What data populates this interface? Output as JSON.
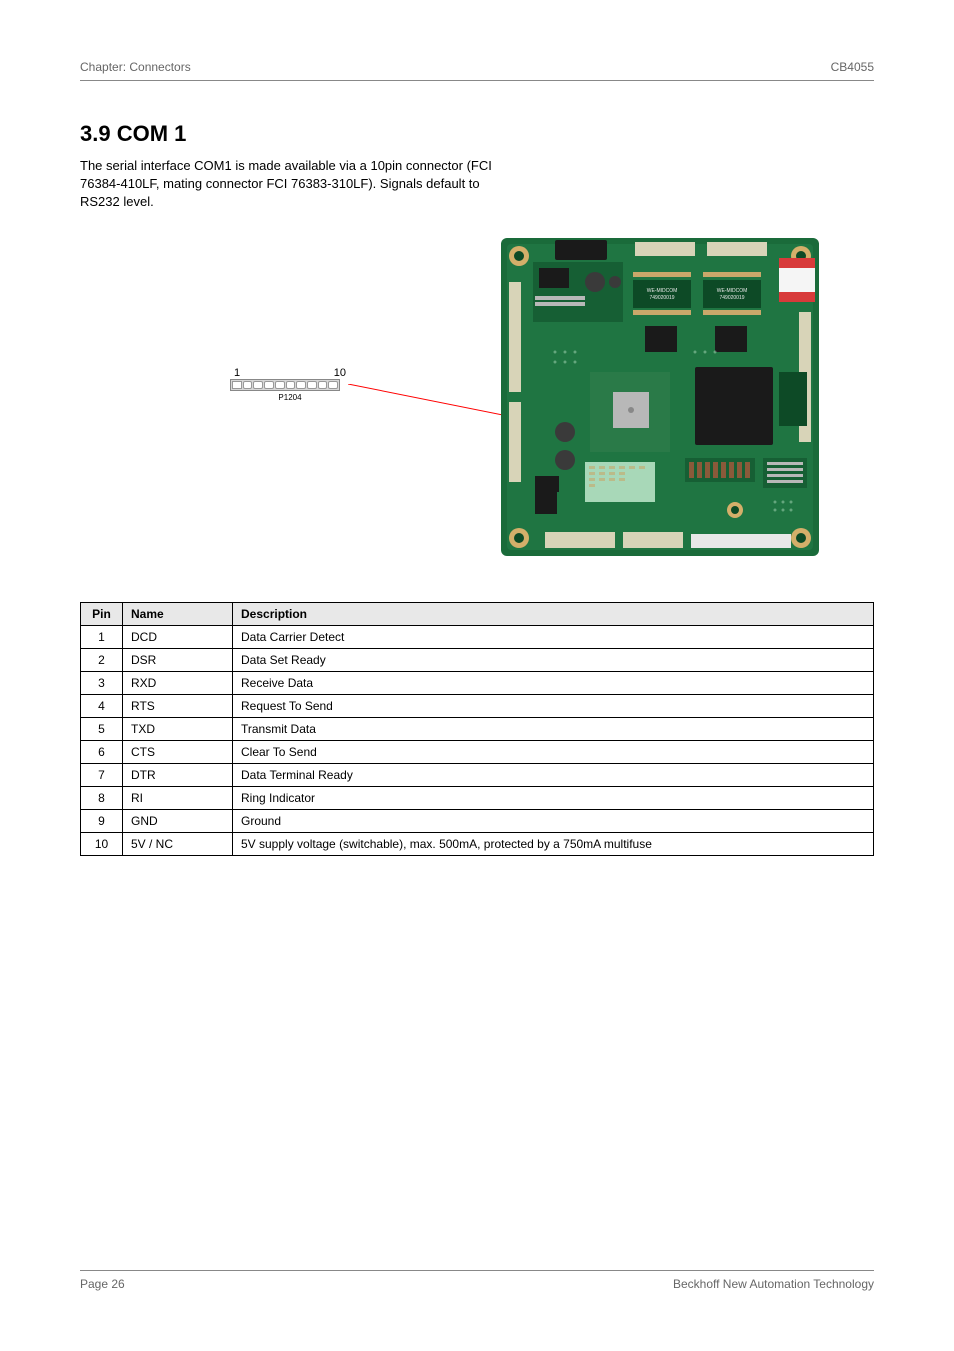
{
  "header": {
    "left": "Chapter: Connectors",
    "right": "CB4055"
  },
  "section": {
    "title": "3.9 COM 1",
    "description": "The serial interface COM1 is made available via a 10pin connector (FCI 76384-410LF, mating connector FCI 76383-310LF). Signals default to RS232 level."
  },
  "diagram": {
    "pin_start": "1",
    "pin_end": "10",
    "ref": "P1204",
    "pin_count": 10,
    "colors": {
      "strip_bg": "#d8d8d8",
      "strip_border": "#888888",
      "pin_bg": "#ffffff",
      "pin_border": "#999999",
      "leader": "#ff0000"
    }
  },
  "board": {
    "colors": {
      "pcb": "#1a6b3a",
      "pcb_dark": "#0d4a26",
      "silk": "#e8e8e8",
      "copper": "#c9a86a",
      "hole": "#d4af6a",
      "chip_black": "#1a1a1a",
      "chip_silver": "#b8b8b8",
      "connector_beige": "#d8d4b8",
      "connector_dark": "#2a2a2a",
      "label_red": "#d83a3a",
      "label_white": "#f5f5f5",
      "via": "#a8d8b8"
    }
  },
  "table": {
    "headers": [
      "Pin",
      "Name",
      "Description"
    ],
    "rows": [
      [
        "1",
        "DCD",
        "Data Carrier Detect"
      ],
      [
        "2",
        "DSR",
        "Data Set Ready"
      ],
      [
        "3",
        "RXD",
        "Receive Data"
      ],
      [
        "4",
        "RTS",
        "Request To Send"
      ],
      [
        "5",
        "TXD",
        "Transmit Data"
      ],
      [
        "6",
        "CTS",
        "Clear To Send"
      ],
      [
        "7",
        "DTR",
        "Data Terminal Ready"
      ],
      [
        "8",
        "RI",
        "Ring Indicator"
      ],
      [
        "9",
        "GND",
        "Ground"
      ],
      [
        "10",
        "5V / NC",
        "5V supply voltage (switchable), max. 500mA, protected by a 750mA multifuse"
      ]
    ]
  },
  "footer": {
    "left": "Page 26",
    "right": "Beckhoff New Automation Technology"
  }
}
